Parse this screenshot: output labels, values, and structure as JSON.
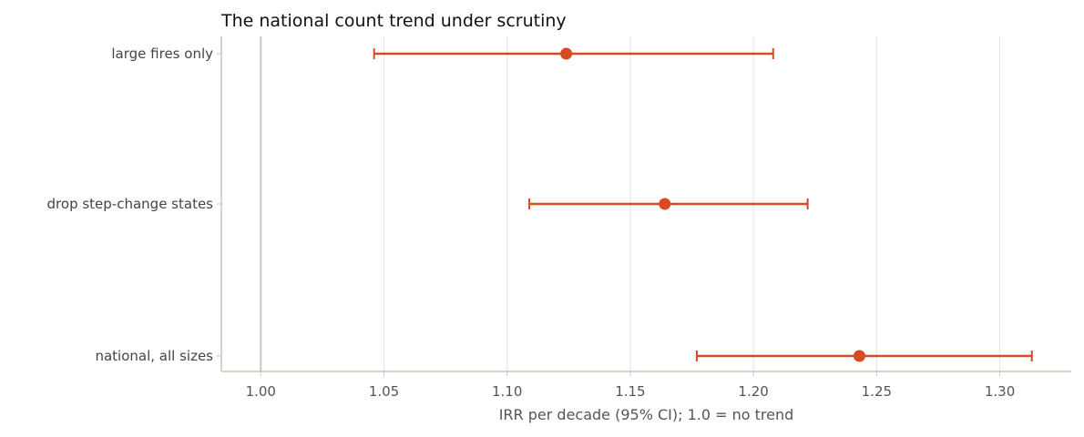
{
  "chart_data": {
    "type": "forest",
    "title": "The national count trend under scrutiny",
    "xlabel": "IRR per decade (95% CI); 1.0 = no trend",
    "ylabel": "",
    "xlim": [
      0.984,
      1.329
    ],
    "xticks": [
      1.0,
      1.05,
      1.1,
      1.15,
      1.2,
      1.25,
      1.3
    ],
    "xtick_labels": [
      "1.00",
      "1.05",
      "1.10",
      "1.15",
      "1.20",
      "1.25",
      "1.30"
    ],
    "reference_line": 1.0,
    "grid": "vertical",
    "color": "#d84a1f",
    "rows": [
      {
        "label": "large fires only",
        "estimate": 1.124,
        "lower": 1.046,
        "upper": 1.208
      },
      {
        "label": "drop step-change states",
        "estimate": 1.164,
        "lower": 1.109,
        "upper": 1.222
      },
      {
        "label": "national, all sizes",
        "estimate": 1.243,
        "lower": 1.177,
        "upper": 1.313
      }
    ]
  }
}
